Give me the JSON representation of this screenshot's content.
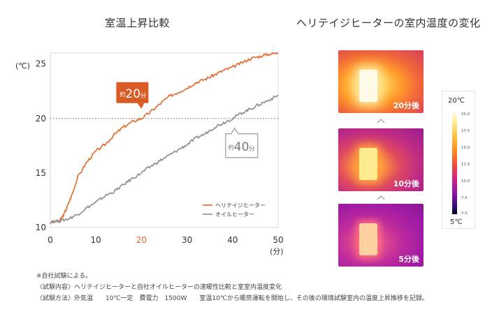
{
  "left_title": "室温上昇比較",
  "right_title": "ヘリテイジヒーターの室内温度の変化",
  "chart_data": {
    "type": "line",
    "title": "室温上昇比較",
    "ylabel": "(℃)",
    "xlabel": "(分)",
    "xlim": [
      0,
      50
    ],
    "ylim": [
      10,
      26
    ],
    "x_ticks": [
      "0",
      "10",
      "20",
      "30",
      "40",
      "50"
    ],
    "y_ticks": [
      "10",
      "15",
      "20",
      "25"
    ],
    "reference_line": 20,
    "series": [
      {
        "name": "ヘリテイジヒーター",
        "color": "#e2692a",
        "x": [
          0,
          2,
          3,
          4,
          5,
          6,
          8,
          10,
          12,
          14,
          16,
          18,
          20,
          22,
          24,
          26,
          28,
          30,
          32,
          34,
          36,
          38,
          40,
          42,
          44,
          46,
          48,
          50
        ],
        "y": [
          10.5,
          10.6,
          11.2,
          12.2,
          13.3,
          14.6,
          16.0,
          17.0,
          17.6,
          18.5,
          19.2,
          19.7,
          20.0,
          20.6,
          21.3,
          22.0,
          22.4,
          22.8,
          23.3,
          23.6,
          24.0,
          24.4,
          24.7,
          25.1,
          25.5,
          25.7,
          25.9,
          26.0
        ]
      },
      {
        "name": "オイルヒーター",
        "color": "#8c8c8c",
        "x": [
          0,
          2,
          4,
          6,
          8,
          10,
          12,
          14,
          16,
          18,
          20,
          22,
          24,
          26,
          28,
          30,
          32,
          34,
          36,
          38,
          40,
          42,
          44,
          46,
          48,
          50
        ],
        "y": [
          10.5,
          10.6,
          10.8,
          11.2,
          11.8,
          12.3,
          12.9,
          13.3,
          13.9,
          14.5,
          15.0,
          15.6,
          16.1,
          16.6,
          17.1,
          17.6,
          18.2,
          18.6,
          19.2,
          19.6,
          20.0,
          20.5,
          20.9,
          21.3,
          21.7,
          22.1
        ]
      }
    ],
    "callouts": [
      {
        "prefix": "約",
        "value": "20",
        "unit": "分",
        "x": 20,
        "color": "#d85a24"
      },
      {
        "prefix": "約",
        "value": "40",
        "unit": "分",
        "x": 40,
        "color": "#9a9a9a"
      }
    ],
    "highlight_tick": "20",
    "highlight_color": "#e2692a"
  },
  "thermal_images": [
    {
      "label": "20分後"
    },
    {
      "label": "10分後"
    },
    {
      "label": "5分後"
    }
  ],
  "color_scale": {
    "top_label": "20℃",
    "bottom_label": "5℃",
    "ticks": [
      "20.0",
      "17.5",
      "15.0",
      "12.5",
      "10.0",
      "7.5",
      "5.0"
    ]
  },
  "notes": {
    "line1": "※自社試験による。",
    "line2": "〈試験内容〉ヘリテイジヒーターと自社オイルヒーターの速暖性比較と室室内温度変化",
    "line3": "〈試験方法〉外気温　　10℃一定　費電力　1500W　　室温10℃から暖房運転を開始し、その後の環境試験室内の温度上昇推移を記録。"
  }
}
